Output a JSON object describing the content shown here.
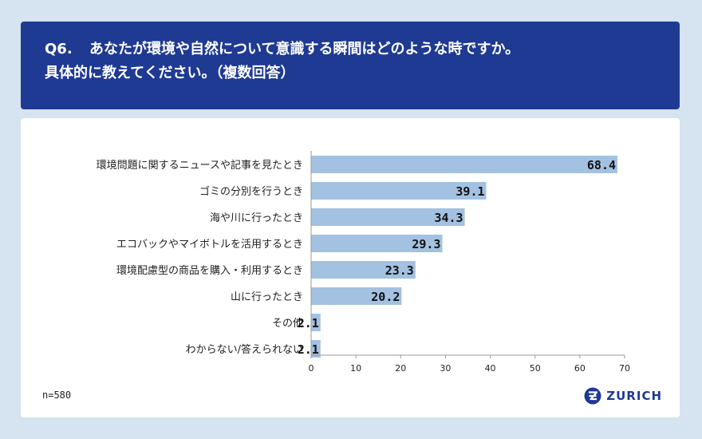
{
  "header": {
    "q_number": "Q6.",
    "line1": "あなたが環境や自然について意識する瞬間はどのような時ですか。",
    "line2": "具体的に教えてください。（複数回答）"
  },
  "footer": {
    "sample_size": "n=580",
    "brand": "ZURICH"
  },
  "colors": {
    "bar": "#a3c1e1",
    "header_bg": "#1f3a93",
    "page_bg": "#d6e3f0"
  },
  "chart_data": {
    "type": "bar",
    "orientation": "horizontal",
    "categories": [
      "環境問題に関するニュースや記事を見たとき",
      "ゴミの分別を行うとき",
      "海や川に行ったとき",
      "エコバックやマイボトルを活用するとき",
      "環境配慮型の商品を購入・利用するとき",
      "山に行ったとき",
      "その他",
      "わからない/答えられない"
    ],
    "values": [
      68.4,
      39.1,
      34.3,
      29.3,
      23.3,
      20.2,
      2.1,
      2.1
    ],
    "value_labels": [
      "68.4",
      "39.1",
      "34.3",
      "29.3",
      "23.3",
      "20.2",
      "2.1",
      "2.1"
    ],
    "xlim": [
      0,
      70
    ],
    "xticks": [
      "0",
      "10",
      "20",
      "30",
      "40",
      "50",
      "60",
      "70"
    ],
    "unit": "%",
    "grid": false
  }
}
